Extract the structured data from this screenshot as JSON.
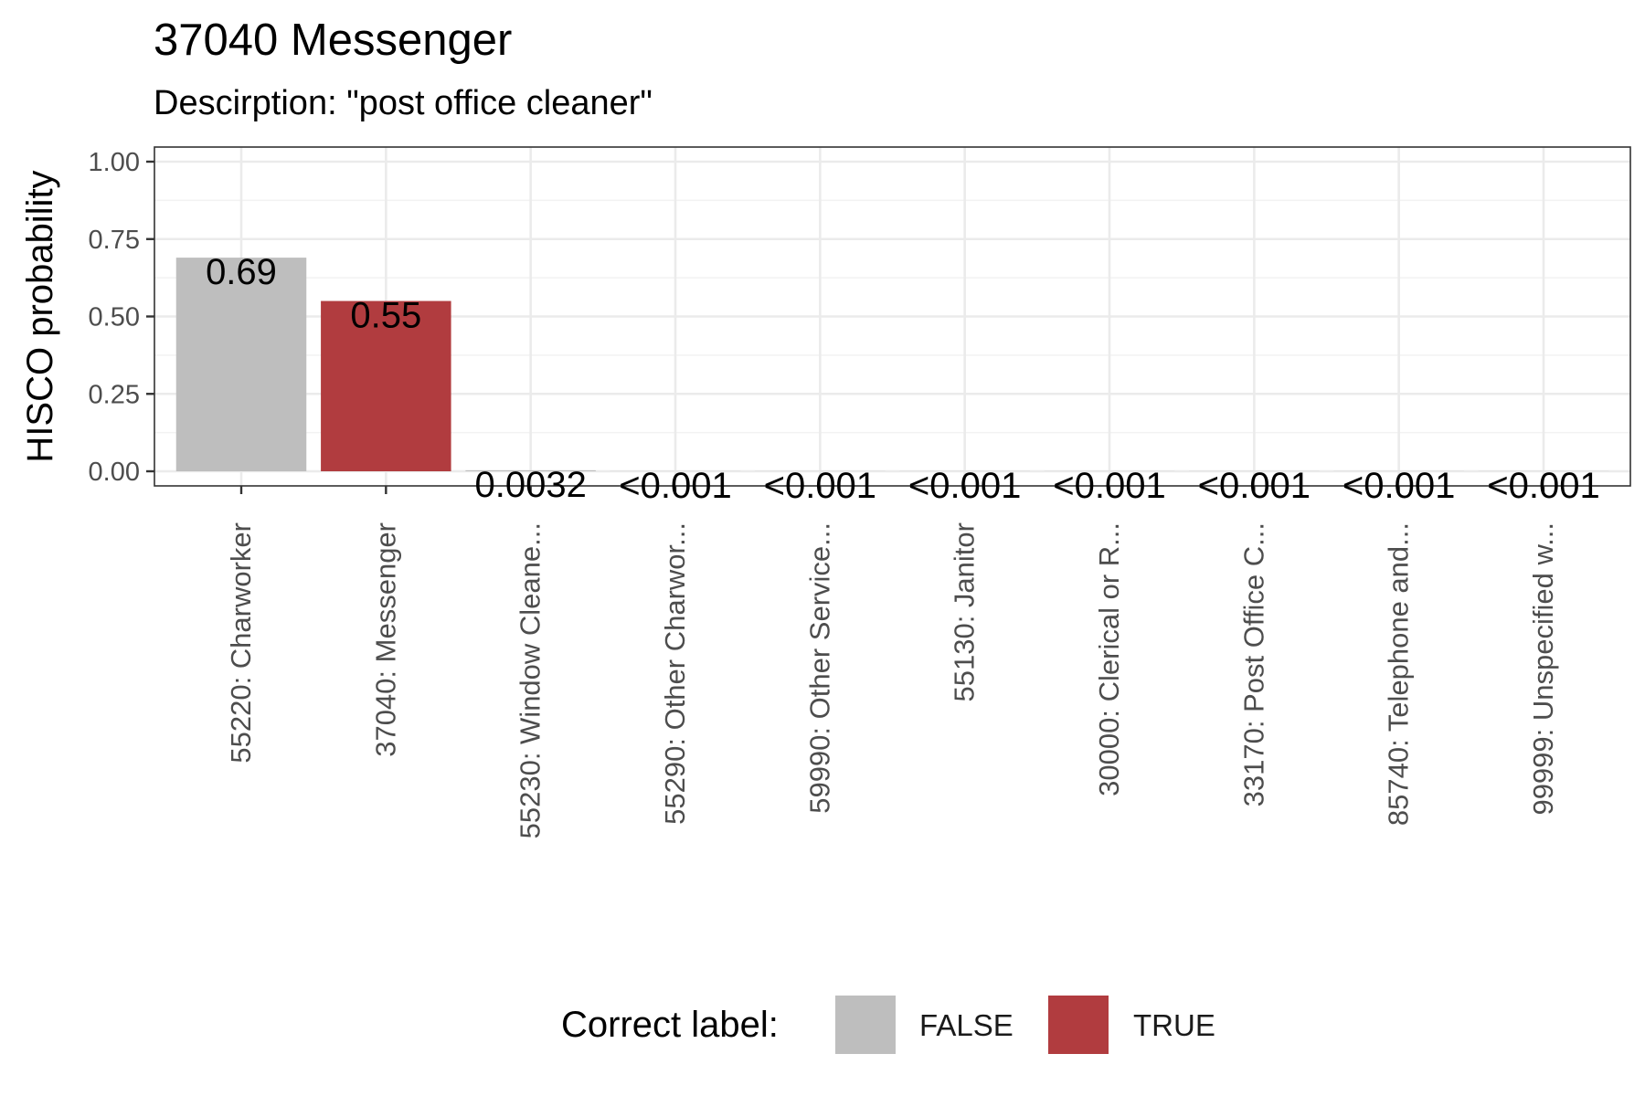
{
  "title": "37040 Messenger",
  "subtitle": "Descirption: \"post office cleaner\"",
  "colors": {
    "false": "#bebebe",
    "true": "#b13c3f"
  },
  "legend": {
    "title": "Correct label:",
    "labels": [
      "FALSE",
      "TRUE"
    ]
  },
  "chart_data": {
    "type": "bar",
    "title": "37040 Messenger",
    "subtitle": "Descirption: \"post office cleaner\"",
    "xlabel": "",
    "ylabel": "HISCO probability",
    "ylim": [
      0,
      1
    ],
    "yticks": [
      0,
      0.25,
      0.5,
      0.75,
      1
    ],
    "ytick_labels": [
      "0.00",
      "0.25",
      "0.50",
      "0.75",
      "1.00"
    ],
    "grid": true,
    "legend_position": "bottom",
    "categories": [
      "55220: Charworker",
      "37040: Messenger",
      "55230: Window Cleane...",
      "55290: Other Charwor...",
      "59990: Other Service...",
      "55130: Janitor",
      "30000: Clerical or R...",
      "33170: Post Office C...",
      "85740: Telephone and...",
      "99999: Unspecified w..."
    ],
    "values": [
      0.69,
      0.55,
      0.0032,
      0.0005,
      0.0005,
      0.0005,
      0.0005,
      0.0005,
      0.0005,
      0.0005
    ],
    "value_labels": [
      "0.69",
      "0.55",
      "0.0032",
      "<0.001",
      "<0.001",
      "<0.001",
      "<0.001",
      "<0.001",
      "<0.001",
      "<0.001"
    ],
    "correct": [
      false,
      true,
      false,
      false,
      false,
      false,
      false,
      false,
      false,
      false
    ]
  }
}
